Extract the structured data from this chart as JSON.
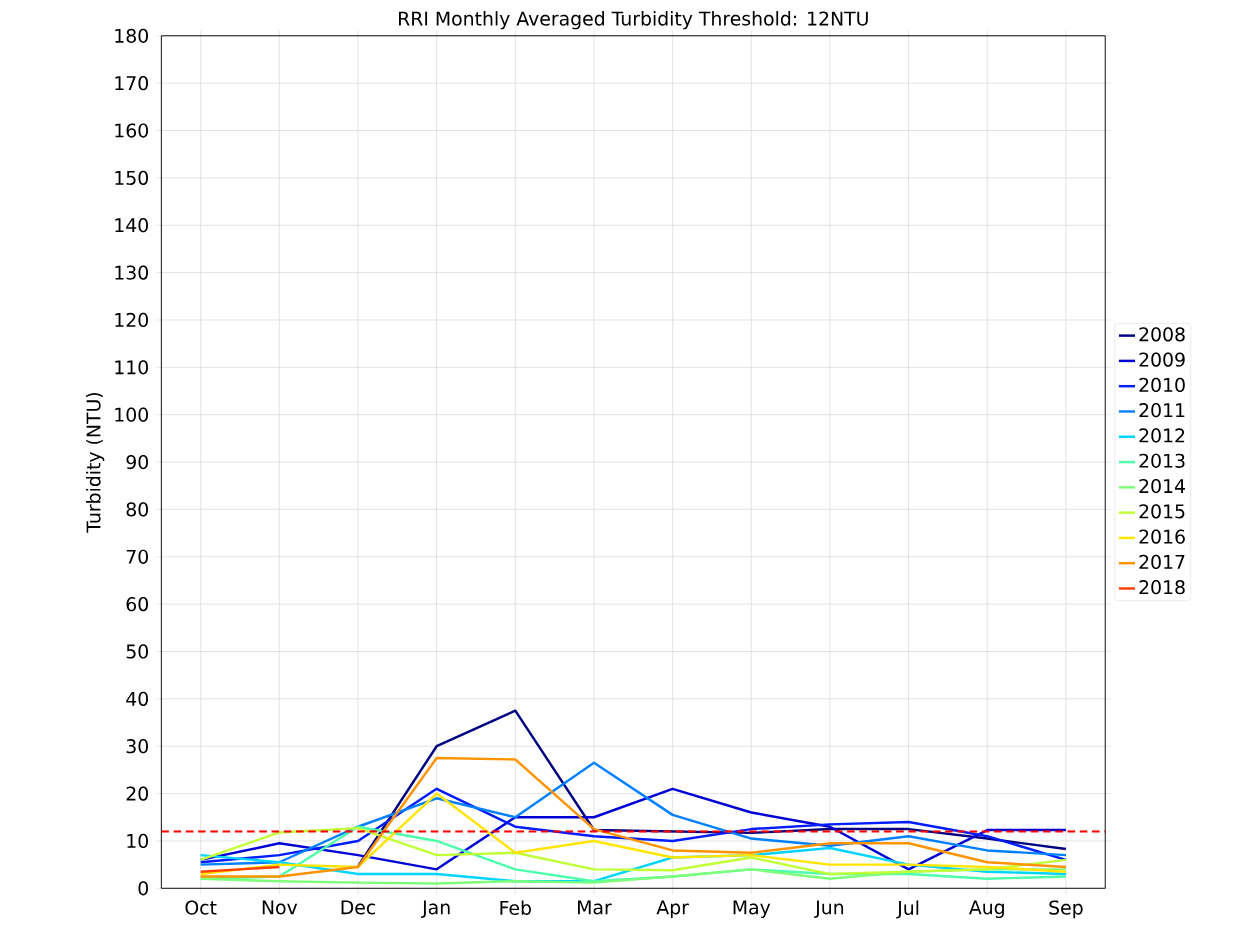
{
  "chart_data": {
    "type": "line",
    "title": "RRI Monthly Averaged Turbidity Threshold: 12NTU",
    "ylabel": "Turbidity (NTU)",
    "categories": [
      "Oct",
      "Nov",
      "Dec",
      "Jan",
      "Feb",
      "Mar",
      "Apr",
      "May",
      "Jun",
      "Jul",
      "Aug",
      "Sep"
    ],
    "ylim": [
      0,
      180
    ],
    "yticks": [
      0,
      10,
      20,
      30,
      40,
      50,
      60,
      70,
      80,
      90,
      100,
      110,
      120,
      130,
      140,
      150,
      160,
      170,
      180
    ],
    "grid": true,
    "legend": "right",
    "ref_lines": [
      {
        "axis": "y",
        "value": 12,
        "color": "#ff0000",
        "line_style": "dashed"
      }
    ],
    "series": [
      {
        "name": "2008",
        "color": "#000080",
        "values": [
          null,
          null,
          4.6,
          30,
          37.5,
          12.3,
          12,
          11.7,
          12.5,
          12.5,
          10.5,
          8.3
        ]
      },
      {
        "name": "2009",
        "color": "#0000d5",
        "values": [
          6,
          9.5,
          7,
          4,
          15,
          15,
          21,
          16,
          13,
          4,
          12.3,
          12.3
        ]
      },
      {
        "name": "2010",
        "color": "#001cff",
        "values": [
          5.5,
          7,
          10,
          21,
          13,
          11,
          10,
          12.5,
          13.5,
          14,
          11,
          6
        ]
      },
      {
        "name": "2011",
        "color": "#0080ff",
        "values": [
          5,
          5.5,
          13,
          19,
          15,
          26.5,
          15.5,
          10.5,
          9,
          11,
          8,
          7
        ]
      },
      {
        "name": "2012",
        "color": "#00d4ff",
        "values": [
          7,
          5.5,
          3,
          3,
          1.5,
          1.5,
          6.5,
          7,
          8.5,
          5,
          3.5,
          3
        ]
      },
      {
        "name": "2013",
        "color": "#4dffaa",
        "values": [
          2,
          2.5,
          13,
          10,
          4,
          1.5,
          2.5,
          4,
          3,
          3,
          2,
          2.5
        ]
      },
      {
        "name": "2014",
        "color": "#7dff7a",
        "values": [
          2,
          1.5,
          1.2,
          1,
          1.5,
          1.2,
          2.5,
          4,
          2,
          3.5,
          4,
          4
        ]
      },
      {
        "name": "2015",
        "color": "#c1ff36",
        "values": [
          6,
          11.8,
          12.7,
          7,
          7.5,
          4,
          3.8,
          6.5,
          3,
          3.5,
          4,
          6
        ]
      },
      {
        "name": "2016",
        "color": "#ffe500",
        "values": [
          3,
          5,
          4.5,
          20,
          7.5,
          10,
          6.5,
          7,
          5,
          5,
          4.5,
          3.5
        ]
      },
      {
        "name": "2017",
        "color": "#ff9400",
        "values": [
          2.5,
          2.5,
          4.5,
          27.5,
          27.2,
          12.5,
          8,
          7.5,
          9.5,
          9.5,
          5.5,
          4.5
        ]
      },
      {
        "name": "2018",
        "color": "#ff4000",
        "values": [
          3.5,
          4.5,
          null,
          null,
          null,
          null,
          null,
          null,
          null,
          null,
          null,
          null
        ]
      }
    ]
  }
}
